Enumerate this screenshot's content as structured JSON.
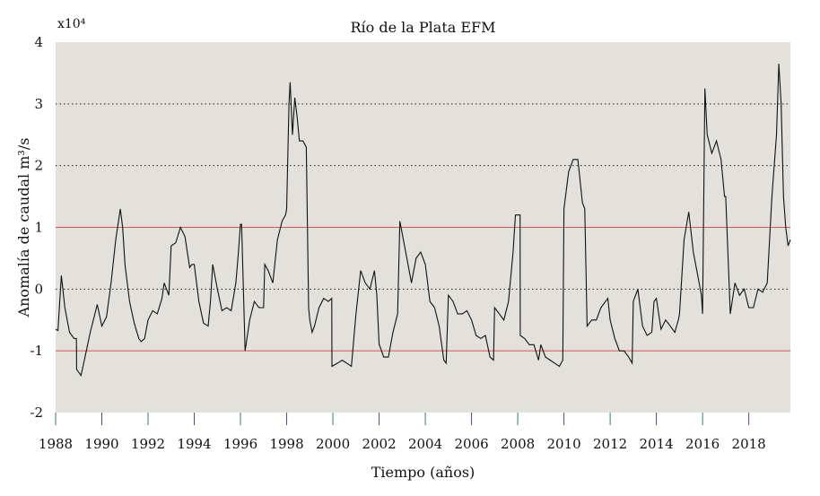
{
  "chart_data": {
    "type": "line",
    "title": "Río de la Plata EFM",
    "xlabel": "Tiempo (años)",
    "ylabel": "Anomalía de caudal m³/s",
    "y_multiplier_label": "x10⁴",
    "xlim": [
      1988,
      2019.8
    ],
    "ylim": [
      -2,
      4
    ],
    "x_ticks": [
      1988,
      1990,
      1992,
      1994,
      1996,
      1998,
      2000,
      2002,
      2004,
      2006,
      2008,
      2010,
      2012,
      2014,
      2016,
      2018
    ],
    "y_ticks": [
      -2,
      -1,
      0,
      1,
      2,
      3,
      4
    ],
    "dotted_gridlines_y": [
      0,
      2,
      3
    ],
    "reference_lines": [
      {
        "y": 1,
        "color": "#d9534f"
      },
      {
        "y": -1,
        "color": "#d9534f"
      }
    ],
    "background_color": "#e3e1dc",
    "line_color": "#111111",
    "series": [
      {
        "x": [
          1988.0,
          1988.1,
          1988.25,
          1988.4,
          1988.6,
          1988.8,
          1988.9,
          1988.91,
          1989.1,
          1989.3,
          1989.5,
          1989.8,
          1990.0,
          1990.2,
          1990.4,
          1990.6,
          1990.8,
          1990.9,
          1991.0,
          1991.2,
          1991.4,
          1991.6,
          1991.7,
          1991.85,
          1992.0,
          1992.2,
          1992.4,
          1992.6,
          1992.7,
          1992.8,
          1992.9,
          1993.0,
          1993.2,
          1993.4,
          1993.6,
          1993.8,
          1993.9,
          1994.0,
          1994.2,
          1994.4,
          1994.6,
          1994.7,
          1994.8,
          1995.0,
          1995.2,
          1995.4,
          1995.6,
          1995.8,
          1995.9,
          1996.0,
          1996.05,
          1996.2,
          1996.4,
          1996.6,
          1996.8,
          1997.0,
          1997.05,
          1997.2,
          1997.4,
          1997.6,
          1997.8,
          1997.95,
          1998.0,
          1998.1,
          1998.15,
          1998.25,
          1998.35,
          1998.45,
          1998.55,
          1998.7,
          1998.85,
          1998.95,
          1999.0,
          1999.1,
          1999.2,
          1999.4,
          1999.6,
          1999.8,
          1999.95,
          1999.96,
          2000.2,
          2000.4,
          2000.6,
          2000.8,
          2001.0,
          2001.2,
          2001.4,
          2001.6,
          2001.8,
          2001.9,
          2002.0,
          2002.01,
          2002.2,
          2002.4,
          2002.6,
          2002.8,
          2002.9,
          2003.0,
          2003.2,
          2003.4,
          2003.6,
          2003.8,
          2004.0,
          2004.2,
          2004.4,
          2004.6,
          2004.8,
          2004.9,
          2005.0,
          2005.2,
          2005.4,
          2005.6,
          2005.8,
          2006.0,
          2006.2,
          2006.4,
          2006.6,
          2006.8,
          2006.95,
          2007.0,
          2007.2,
          2007.4,
          2007.6,
          2007.8,
          2007.9,
          2008.0,
          2008.1,
          2008.11,
          2008.3,
          2008.5,
          2008.7,
          2008.9,
          2009.0,
          2009.2,
          2009.4,
          2009.6,
          2009.8,
          2009.95,
          2010.0,
          2010.2,
          2010.4,
          2010.6,
          2010.8,
          2010.9,
          2011.0,
          2011.2,
          2011.4,
          2011.6,
          2011.8,
          2011.9,
          2012.0,
          2012.2,
          2012.4,
          2012.6,
          2012.8,
          2012.95,
          2013.0,
          2013.2,
          2013.4,
          2013.6,
          2013.8,
          2013.9,
          2014.0,
          2014.2,
          2014.4,
          2014.6,
          2014.8,
          2014.95,
          2015.0,
          2015.2,
          2015.4,
          2015.6,
          2015.8,
          2015.95,
          2016.0,
          2016.1,
          2016.2,
          2016.4,
          2016.6,
          2016.8,
          2016.95,
          2017.0,
          2017.2,
          2017.4,
          2017.6,
          2017.8,
          2018.0,
          2018.2,
          2018.4,
          2018.6,
          2018.8,
          2019.0,
          2019.2,
          2019.3,
          2019.4,
          2019.5,
          2019.6,
          2019.7,
          2019.8
        ],
        "y": [
          -0.65,
          -0.67,
          0.22,
          -0.3,
          -0.7,
          -0.8,
          -0.8,
          -1.3,
          -1.4,
          -1.05,
          -0.7,
          -0.25,
          -0.6,
          -0.45,
          0.1,
          0.8,
          1.3,
          1.0,
          0.4,
          -0.2,
          -0.55,
          -0.8,
          -0.85,
          -0.8,
          -0.5,
          -0.35,
          -0.4,
          -0.15,
          0.1,
          0.0,
          -0.1,
          0.7,
          0.75,
          1.0,
          0.85,
          0.35,
          0.4,
          0.4,
          -0.2,
          -0.55,
          -0.6,
          -0.2,
          0.4,
          0.0,
          -0.35,
          -0.3,
          -0.35,
          0.1,
          0.55,
          1.05,
          1.05,
          -1.0,
          -0.5,
          -0.2,
          -0.3,
          -0.3,
          0.4,
          0.3,
          0.1,
          0.8,
          1.1,
          1.2,
          1.3,
          3.0,
          3.35,
          2.5,
          3.1,
          2.8,
          2.4,
          2.4,
          2.3,
          -0.3,
          -0.5,
          -0.7,
          -0.6,
          -0.3,
          -0.15,
          -0.2,
          -0.15,
          -1.25,
          -1.2,
          -1.15,
          -1.2,
          -1.25,
          -0.4,
          0.3,
          0.1,
          0.0,
          0.3,
          -0.1,
          -0.9,
          -0.9,
          -1.1,
          -1.1,
          -0.7,
          -0.4,
          1.1,
          0.9,
          0.5,
          0.1,
          0.5,
          0.6,
          0.4,
          -0.2,
          -0.3,
          -0.6,
          -1.15,
          -1.2,
          -0.1,
          -0.2,
          -0.4,
          -0.4,
          -0.35,
          -0.5,
          -0.75,
          -0.8,
          -0.75,
          -1.1,
          -1.15,
          -0.3,
          -0.4,
          -0.5,
          -0.2,
          0.6,
          1.2,
          1.2,
          1.2,
          -0.75,
          -0.8,
          -0.9,
          -0.9,
          -1.15,
          -0.9,
          -1.1,
          -1.15,
          -1.2,
          -1.25,
          -1.15,
          1.3,
          1.9,
          2.1,
          2.1,
          1.4,
          1.3,
          -0.6,
          -0.5,
          -0.5,
          -0.3,
          -0.2,
          -0.15,
          -0.5,
          -0.8,
          -1.0,
          -1.0,
          -1.1,
          -1.2,
          -0.2,
          0.0,
          -0.6,
          -0.75,
          -0.7,
          -0.2,
          -0.15,
          -0.65,
          -0.5,
          -0.6,
          -0.7,
          -0.5,
          -0.4,
          0.8,
          1.25,
          0.6,
          0.2,
          -0.1,
          -0.4,
          3.25,
          2.5,
          2.2,
          2.4,
          2.1,
          1.5,
          1.5,
          -0.4,
          0.1,
          -0.1,
          0.0,
          -0.3,
          -0.3,
          0.0,
          -0.05,
          0.1,
          1.5,
          2.5,
          3.65,
          3.0,
          1.5,
          1.0,
          0.7,
          0.8
        ]
      }
    ]
  }
}
